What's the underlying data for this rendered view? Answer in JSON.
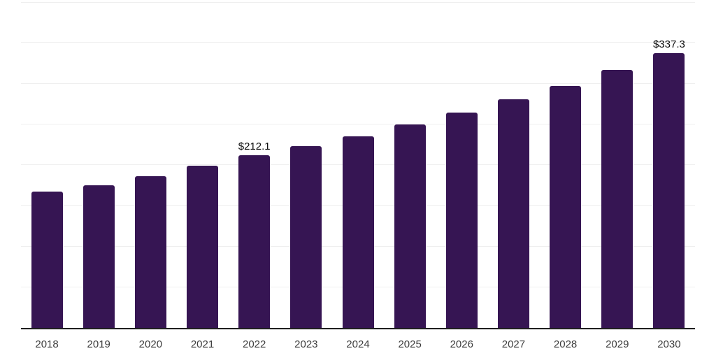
{
  "chart_data": {
    "type": "bar",
    "title": "",
    "xlabel": "",
    "ylabel": "",
    "categories": [
      "2018",
      "2019",
      "2020",
      "2021",
      "2022",
      "2023",
      "2024",
      "2025",
      "2026",
      "2027",
      "2028",
      "2029",
      "2030"
    ],
    "values": [
      167.0,
      175.5,
      186.0,
      199.4,
      212.1,
      223.5,
      235.0,
      249.6,
      264.1,
      280.3,
      296.8,
      316.7,
      337.3
    ],
    "annotations": [
      {
        "category": "2022",
        "text": "$212.1"
      },
      {
        "category": "2030",
        "text": "$337.3"
      }
    ],
    "ylim": [
      0,
      400
    ],
    "grid_step": 50,
    "grid": true,
    "y_tick_labels_visible": false,
    "legend": false,
    "bar_color": "#361553",
    "grid_color": "#efefef",
    "axis_color": "#1f1f1f",
    "tick_color": "#3d3d3d",
    "annotation_color": "#0b0b0b",
    "background": "#ffffff"
  }
}
